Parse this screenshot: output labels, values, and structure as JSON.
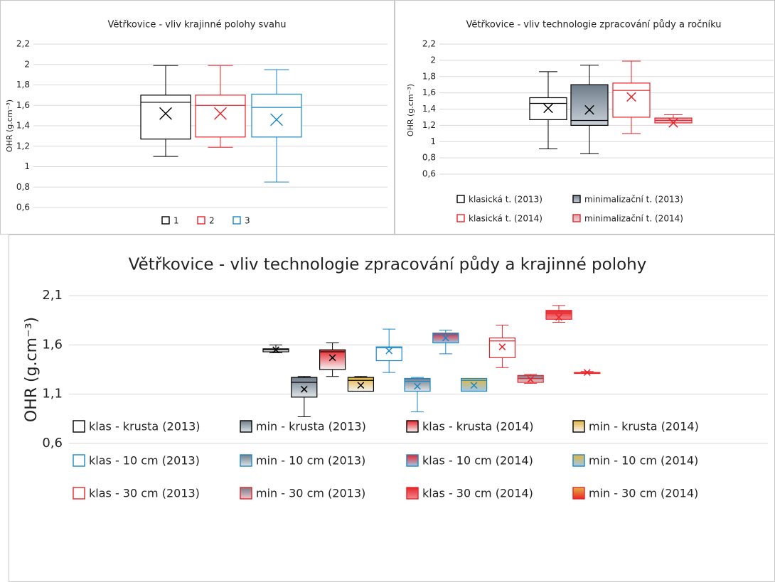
{
  "chart_data": [
    {
      "type": "box",
      "title": "Větřkovice - vliv krajinné polohy svahu",
      "ylabel": "OHR (g.cm⁻³)",
      "ylim": [
        0.6,
        2.2
      ],
      "yticks": [
        {
          "value": 0.6,
          "label": "0,6"
        },
        {
          "value": 0.8,
          "label": "0,8"
        },
        1,
        {
          "value": 1.2,
          "label": "1,2"
        },
        {
          "value": 1.4,
          "label": "1,4"
        },
        {
          "value": 1.6,
          "label": "1,6"
        },
        {
          "value": 1.8,
          "label": "1,8"
        },
        2,
        {
          "value": 2.2,
          "label": "2,2"
        }
      ],
      "grid": true,
      "legend": "bottom",
      "series": [
        {
          "name": "1",
          "color": "#000000",
          "fill": "#ffffff",
          "min": 1.1,
          "q1": 1.27,
          "median": 1.63,
          "q3": 1.7,
          "max": 1.99,
          "mean": 1.52
        },
        {
          "name": "2",
          "color": "#e8232a",
          "fill": "#ffffff",
          "min": 1.19,
          "q1": 1.29,
          "median": 1.6,
          "q3": 1.7,
          "max": 1.99,
          "mean": 1.52
        },
        {
          "name": "3",
          "color": "#1a87c8",
          "fill": "#ffffff",
          "min": 0.85,
          "q1": 1.29,
          "median": 1.58,
          "q3": 1.71,
          "max": 1.95,
          "mean": 1.46
        }
      ]
    },
    {
      "type": "box",
      "title": "Větřkovice - vliv technologie zpracování půdy a ročníku",
      "ylabel": "OHR (g.cm⁻³)",
      "ylim": [
        0.6,
        2.2
      ],
      "yticks": [
        {
          "value": 0.6,
          "label": "0,6"
        },
        {
          "value": 0.8,
          "label": "0,8"
        },
        1,
        {
          "value": 1.2,
          "label": "1,2"
        },
        {
          "value": 1.4,
          "label": "1,4"
        },
        {
          "value": 1.6,
          "label": "1,6"
        },
        {
          "value": 1.8,
          "label": "1,8"
        },
        2,
        {
          "value": 2.2,
          "label": "2,2"
        }
      ],
      "grid": true,
      "legend": "bottom",
      "series": [
        {
          "name": "klasická t. (2013)",
          "color": "#000000",
          "fill": "#ffffff",
          "min": 0.91,
          "q1": 1.27,
          "median": 1.47,
          "q3": 1.54,
          "max": 1.86,
          "mean": 1.41
        },
        {
          "name": "minimalizační t. (2013)",
          "color": "#000000",
          "fill": [
            "#6f7d8a",
            "#c9d1d8"
          ],
          "min": 0.85,
          "q1": 1.2,
          "median": 1.26,
          "q3": 1.7,
          "max": 1.94,
          "mean": 1.39
        },
        {
          "name": "klasická t. (2014)",
          "color": "#e8232a",
          "fill": "#ffffff",
          "min": 1.1,
          "q1": 1.3,
          "median": 1.63,
          "q3": 1.72,
          "max": 1.99,
          "mean": 1.55
        },
        {
          "name": "minimalizační t. (2014)",
          "color": "#e8232a",
          "fill": [
            "#d9a0a8",
            "#f2d4d8"
          ],
          "min": 1.23,
          "q1": 1.23,
          "median": 1.26,
          "q3": 1.29,
          "max": 1.33,
          "mean": 1.23
        }
      ]
    },
    {
      "type": "box",
      "title": "Větřkovice - vliv technologie zpracování půdy a krajinné polohy",
      "ylabel": "OHR (g.cm⁻³)",
      "ylim": [
        0.6,
        2.1
      ],
      "yticks": [
        {
          "value": 0.6,
          "label": "0,6"
        },
        {
          "value": 1.1,
          "label": "1,1"
        },
        {
          "value": 1.6,
          "label": "1,6"
        },
        {
          "value": 2.1,
          "label": "2,1"
        }
      ],
      "grid": true,
      "legend": "bottom",
      "series": [
        {
          "name": "klas - krusta (2013)",
          "color": "#000000",
          "fill": "#ffffff",
          "min": 1.52,
          "q1": 1.53,
          "median": 1.55,
          "q3": 1.56,
          "max": 1.6,
          "mean": 1.55
        },
        {
          "name": "min - krusta (2013)",
          "color": "#000000",
          "fill": [
            "#6f7d8a",
            "#dfe4e8"
          ],
          "min": 0.87,
          "q1": 1.07,
          "median": 1.22,
          "q3": 1.27,
          "max": 1.28,
          "mean": 1.15
        },
        {
          "name": "klas - krusta (2014)",
          "color": "#000000",
          "fill": [
            "#e8232a",
            "#f5f5f5"
          ],
          "min": 1.28,
          "q1": 1.35,
          "median": 1.53,
          "q3": 1.55,
          "max": 1.62,
          "mean": 1.47
        },
        {
          "name": "min - krusta (2014)",
          "color": "#000000",
          "fill": [
            "#e3b43c",
            "#f5f5f5"
          ],
          "min": 1.13,
          "q1": 1.13,
          "median": 1.24,
          "q3": 1.27,
          "max": 1.28,
          "mean": 1.19
        },
        {
          "name": "klas - 10 cm (2013)",
          "color": "#1a87c8",
          "fill": "#ffffff",
          "min": 1.32,
          "q1": 1.44,
          "median": 1.57,
          "q3": 1.58,
          "max": 1.76,
          "mean": 1.54
        },
        {
          "name": "min - 10 cm (2013)",
          "color": "#1a87c8",
          "fill": [
            "#6f7d8a",
            "#dfe4e8"
          ],
          "min": 0.92,
          "q1": 1.13,
          "median": 1.23,
          "q3": 1.26,
          "max": 1.27,
          "mean": 1.18
        },
        {
          "name": "klas - 10 cm (2014)",
          "color": "#1a87c8",
          "fill": [
            "#e8232a",
            "#9fc8e8"
          ],
          "min": 1.51,
          "q1": 1.62,
          "median": 1.7,
          "q3": 1.72,
          "max": 1.75,
          "mean": 1.67
        },
        {
          "name": "min - 10 cm (2014)",
          "color": "#1a87c8",
          "fill": [
            "#e3b43c",
            "#9fc8e8"
          ],
          "min": 1.13,
          "q1": 1.13,
          "median": 1.24,
          "q3": 1.26,
          "max": 1.26,
          "mean": 1.19
        },
        {
          "name": "klas - 30 cm (2013)",
          "color": "#e8232a",
          "fill": "#ffffff",
          "min": 1.37,
          "q1": 1.47,
          "median": 1.64,
          "q3": 1.67,
          "max": 1.8,
          "mean": 1.58
        },
        {
          "name": "min - 30 cm (2013)",
          "color": "#e8232a",
          "fill": [
            "#6f7d8a",
            "#f2c6c8"
          ],
          "min": 1.21,
          "q1": 1.22,
          "median": 1.26,
          "q3": 1.29,
          "max": 1.3,
          "mean": 1.25
        },
        {
          "name": "klas - 30 cm (2014)",
          "color": "#e8232a",
          "fill": [
            "#e8232a",
            "#f08a8e"
          ],
          "min": 1.83,
          "q1": 1.86,
          "median": 1.92,
          "q3": 1.95,
          "max": 2.0,
          "mean": 1.88
        },
        {
          "name": "min - 30 cm (2014)",
          "color": "#e8232a",
          "fill": [
            "#e3b43c",
            "#e8232a"
          ],
          "min": 1.31,
          "q1": 1.31,
          "median": 1.32,
          "q3": 1.32,
          "max": 1.33,
          "mean": 1.32
        }
      ]
    }
  ]
}
